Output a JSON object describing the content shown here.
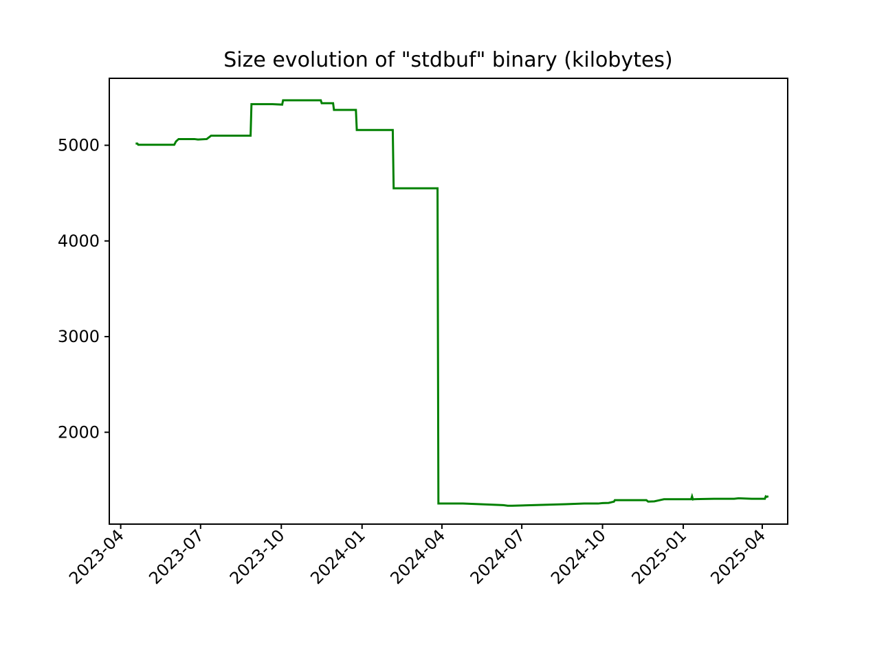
{
  "chart_data": {
    "type": "line",
    "title": "Size evolution of \"stdbuf\" binary (kilobytes)",
    "xlabel": "",
    "ylabel": "",
    "x_axis_type": "date",
    "xlim": [
      "2023-03-19",
      "2025-04-30"
    ],
    "ylim": [
      1040,
      5700
    ],
    "x_ticks": [
      "2023-04",
      "2023-07",
      "2023-10",
      "2024-01",
      "2024-04",
      "2024-07",
      "2024-10",
      "2025-01",
      "2025-04"
    ],
    "y_ticks": [
      2000,
      3000,
      4000,
      5000
    ],
    "grid": false,
    "legend": "none",
    "colors": {
      "line": "#008000",
      "axes": "#000000",
      "background": "#ffffff"
    },
    "series": [
      {
        "color": "#008000",
        "step": true,
        "x": [
          "2023-04-18",
          "2023-04-20",
          "2023-04-21",
          "2023-04-22",
          "2023-06-01",
          "2023-06-03",
          "2023-06-06",
          "2023-06-24",
          "2023-06-28",
          "2023-07-08",
          "2023-07-13",
          "2023-08-27",
          "2023-08-28",
          "2023-09-21",
          "2023-10-02",
          "2023-10-03",
          "2023-11-15",
          "2023-11-16",
          "2023-11-29",
          "2023-11-30",
          "2023-12-25",
          "2023-12-26",
          "2024-02-05",
          "2024-02-06",
          "2024-03-27",
          "2024-03-28",
          "2024-04-01",
          "2024-04-25",
          "2024-06-10",
          "2024-06-15",
          "2024-06-20",
          "2024-08-20",
          "2024-09-10",
          "2024-09-26",
          "2024-10-01",
          "2024-10-08",
          "2024-10-14",
          "2024-10-15",
          "2024-11-20",
          "2024-11-22",
          "2024-11-29",
          "2024-12-05",
          "2024-12-10",
          "2025-01-10",
          "2025-01-11",
          "2025-01-12",
          "2025-01-13",
          "2025-01-20",
          "2025-02-05",
          "2025-02-28",
          "2025-03-05",
          "2025-03-20",
          "2025-03-25",
          "2025-04-04",
          "2025-04-05",
          "2025-04-06",
          "2025-04-08"
        ],
        "y": [
          5018,
          5018,
          5005,
          5005,
          5005,
          5040,
          5065,
          5065,
          5060,
          5065,
          5100,
          5100,
          5430,
          5430,
          5425,
          5470,
          5470,
          5440,
          5440,
          5370,
          5370,
          5160,
          5160,
          4550,
          4550,
          1255,
          1255,
          1255,
          1238,
          1232,
          1232,
          1248,
          1255,
          1255,
          1260,
          1262,
          1275,
          1290,
          1290,
          1275,
          1278,
          1290,
          1300,
          1300,
          1330,
          1298,
          1300,
          1302,
          1305,
          1305,
          1310,
          1305,
          1305,
          1305,
          1330,
          1325,
          1330
        ]
      }
    ]
  }
}
